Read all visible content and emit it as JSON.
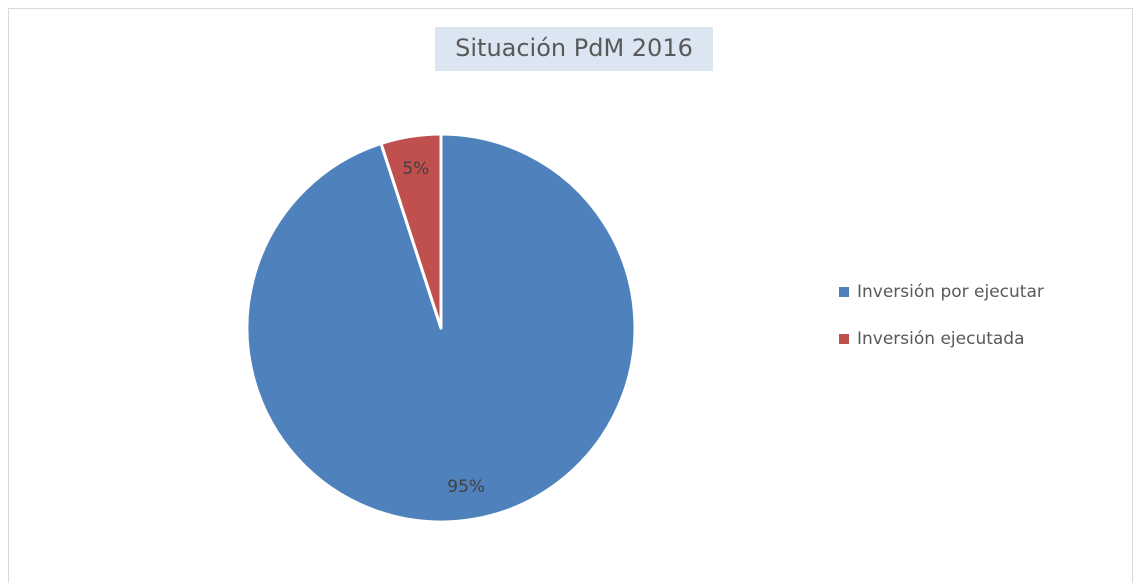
{
  "chart_data": {
    "type": "pie",
    "title": "Situación PdM 2016",
    "categories": [
      "Inversión por ejecutar",
      "Inversión ejecutada"
    ],
    "values": [
      95,
      5
    ],
    "value_labels": [
      "95%",
      "5%"
    ],
    "colors": [
      "#4f81bd",
      "#c0504d"
    ],
    "legend": "right"
  }
}
